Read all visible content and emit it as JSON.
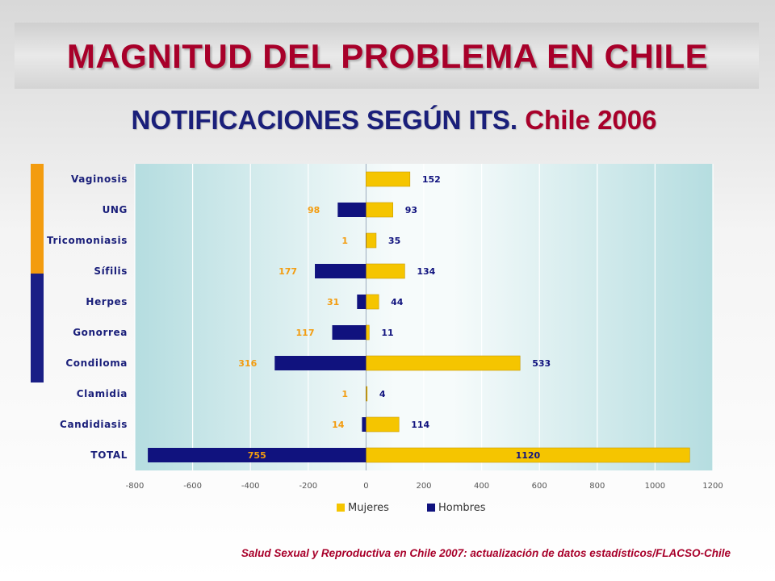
{
  "title": "MAGNITUD DEL PROBLEMA EN CHILE",
  "subtitle_main": "NOTIFICACIONES SEGÚN ITS.",
  "subtitle_year": "Chile 2006",
  "source": "Salud Sexual y Reproductiva en Chile 2007: actualización de datos estadísticos/FLACSO-Chile",
  "colors": {
    "mujeres": "#f5c500",
    "hombres": "#10127e",
    "title": "#a8002a",
    "subtitle": "#1a1f7a"
  },
  "chart_data": {
    "type": "bar",
    "orientation": "horizontal",
    "categories": [
      "Vaginosis",
      "UNG",
      "Tricomoniasis",
      "Sífilis",
      "Herpes",
      "Gonorrea",
      "Condiloma",
      "Clamidia",
      "Candidiasis",
      "TOTAL"
    ],
    "series": [
      {
        "name": "Mujeres",
        "values": [
          152,
          93,
          35,
          134,
          44,
          11,
          533,
          4,
          114,
          1120
        ]
      },
      {
        "name": "Hombres",
        "values": [
          null,
          98,
          1,
          177,
          31,
          117,
          316,
          1,
          14,
          755
        ]
      }
    ],
    "xlim": [
      -800,
      1200
    ],
    "xticks": [
      "-800",
      "-600",
      "-400",
      "-200",
      "0",
      "200",
      "400",
      "600",
      "800",
      "1000",
      "1200"
    ],
    "legend": "bottom",
    "grid": true
  }
}
